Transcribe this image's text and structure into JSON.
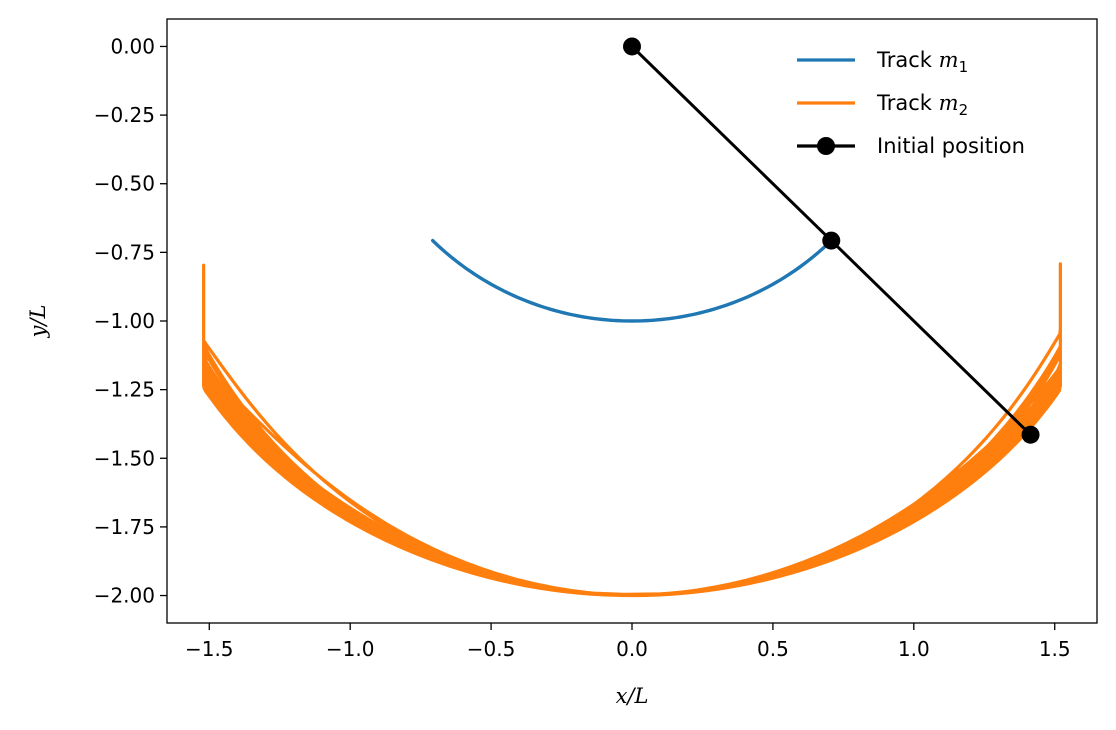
{
  "chart_data": {
    "type": "line",
    "title": "",
    "xlabel": "x/L",
    "ylabel": "y/L",
    "xlim": [
      -1.65,
      1.65
    ],
    "ylim": [
      -2.1,
      0.1
    ],
    "x_ticks": [
      -1.5,
      -1.0,
      -0.5,
      0.0,
      0.5,
      1.0,
      1.5
    ],
    "x_tick_labels": [
      "−1.5",
      "−1.0",
      "−0.5",
      "0.0",
      "0.5",
      "1.0",
      "1.5"
    ],
    "y_ticks": [
      0.0,
      -0.25,
      -0.5,
      -0.75,
      -1.0,
      -1.25,
      -1.5,
      -1.75,
      -2.0
    ],
    "y_tick_labels": [
      "0.00",
      "−0.25",
      "−0.50",
      "−0.75",
      "−1.00",
      "−1.25",
      "−1.50",
      "−1.75",
      "−2.00"
    ],
    "grid": false,
    "legend_position": "top-right",
    "series": [
      {
        "name": "Track m1",
        "legend_base": "Track ",
        "legend_symbol": "m",
        "legend_subscript": "1",
        "color": "#1f77b4",
        "kind": "arc",
        "theta_range_deg": [
          -45,
          45
        ],
        "radius": 1.0
      },
      {
        "name": "Track m2",
        "legend_base": "Track ",
        "legend_symbol": "m",
        "legend_subscript": "2",
        "color": "#ff7f0e",
        "kind": "chaotic-bowl",
        "envelope_x_range": [
          -1.5,
          1.5
        ],
        "envelope_y_range": [
          -2.0,
          -0.75
        ],
        "points": [
          [
            1.414,
            -1.414
          ],
          [
            1.45,
            -1.2
          ],
          [
            1.35,
            -0.75
          ],
          [
            1.2,
            -1.35
          ],
          [
            0.6,
            -1.8
          ],
          [
            0.0,
            -2.0
          ],
          [
            -0.6,
            -1.82
          ],
          [
            -1.2,
            -1.5
          ],
          [
            -1.5,
            -1.1
          ],
          [
            -1.36,
            -0.77
          ],
          [
            -1.45,
            -1.35
          ],
          [
            -1.0,
            -1.65
          ],
          [
            0.0,
            -1.98
          ],
          [
            1.0,
            -1.6
          ],
          [
            1.5,
            -1.15
          ]
        ]
      },
      {
        "name": "Initial position",
        "legend_base": "Initial position",
        "color": "#000000",
        "kind": "line-markers",
        "x": [
          0.0,
          0.7071,
          1.4142
        ],
        "y": [
          0.0,
          -0.7071,
          -1.4142
        ]
      }
    ]
  }
}
